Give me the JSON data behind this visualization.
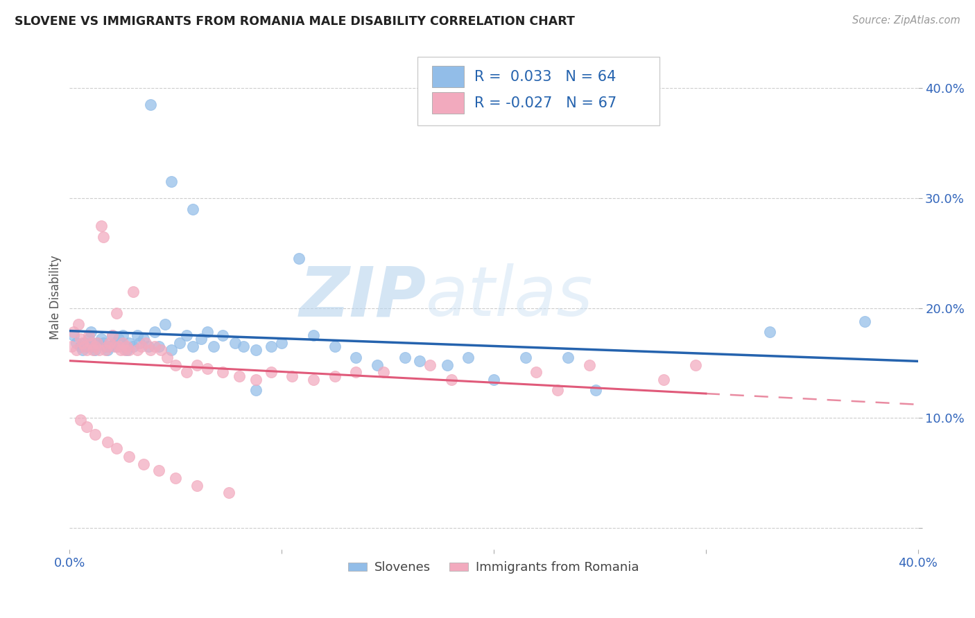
{
  "title": "SLOVENE VS IMMIGRANTS FROM ROMANIA MALE DISABILITY CORRELATION CHART",
  "source": "Source: ZipAtlas.com",
  "ylabel": "Male Disability",
  "xlim": [
    0.0,
    0.4
  ],
  "ylim": [
    -0.02,
    0.44
  ],
  "ytick_vals": [
    0.0,
    0.1,
    0.2,
    0.3,
    0.4
  ],
  "xtick_vals": [
    0.0,
    0.1,
    0.2,
    0.3,
    0.4
  ],
  "blue_color": "#92BDE8",
  "pink_color": "#F2AABE",
  "blue_line_color": "#2563AE",
  "pink_line_color": "#E05A7A",
  "watermark_zip": "ZIP",
  "watermark_atlas": "atlas",
  "legend_R_blue": " 0.033",
  "legend_N_blue": "64",
  "legend_R_pink": "-0.027",
  "legend_N_pink": "67",
  "blue_scatter_x": [
    0.038,
    0.088,
    0.048,
    0.058,
    0.002,
    0.003,
    0.005,
    0.006,
    0.007,
    0.008,
    0.009,
    0.01,
    0.011,
    0.012,
    0.013,
    0.015,
    0.016,
    0.017,
    0.018,
    0.019,
    0.02,
    0.021,
    0.022,
    0.023,
    0.025,
    0.026,
    0.027,
    0.028,
    0.03,
    0.032,
    0.033,
    0.035,
    0.037,
    0.04,
    0.042,
    0.045,
    0.048,
    0.052,
    0.055,
    0.058,
    0.062,
    0.065,
    0.068,
    0.072,
    0.078,
    0.082,
    0.088,
    0.095,
    0.1,
    0.108,
    0.115,
    0.125,
    0.135,
    0.145,
    0.158,
    0.165,
    0.178,
    0.188,
    0.2,
    0.215,
    0.235,
    0.248,
    0.33,
    0.375
  ],
  "blue_scatter_y": [
    0.385,
    0.125,
    0.315,
    0.29,
    0.175,
    0.168,
    0.165,
    0.162,
    0.168,
    0.165,
    0.172,
    0.178,
    0.165,
    0.162,
    0.168,
    0.172,
    0.168,
    0.165,
    0.162,
    0.165,
    0.175,
    0.168,
    0.165,
    0.172,
    0.175,
    0.165,
    0.162,
    0.168,
    0.165,
    0.175,
    0.168,
    0.172,
    0.165,
    0.178,
    0.165,
    0.185,
    0.162,
    0.168,
    0.175,
    0.165,
    0.172,
    0.178,
    0.165,
    0.175,
    0.168,
    0.165,
    0.162,
    0.165,
    0.168,
    0.245,
    0.175,
    0.165,
    0.155,
    0.148,
    0.155,
    0.152,
    0.148,
    0.155,
    0.135,
    0.155,
    0.155,
    0.125,
    0.178,
    0.188
  ],
  "pink_scatter_x": [
    0.001,
    0.002,
    0.003,
    0.004,
    0.005,
    0.006,
    0.007,
    0.008,
    0.009,
    0.01,
    0.011,
    0.012,
    0.013,
    0.014,
    0.015,
    0.016,
    0.017,
    0.018,
    0.019,
    0.02,
    0.021,
    0.022,
    0.023,
    0.024,
    0.025,
    0.026,
    0.027,
    0.028,
    0.03,
    0.032,
    0.034,
    0.036,
    0.038,
    0.04,
    0.043,
    0.046,
    0.05,
    0.055,
    0.06,
    0.065,
    0.072,
    0.08,
    0.088,
    0.095,
    0.105,
    0.115,
    0.125,
    0.135,
    0.148,
    0.17,
    0.18,
    0.22,
    0.23,
    0.245,
    0.28,
    0.295,
    0.005,
    0.008,
    0.012,
    0.018,
    0.022,
    0.028,
    0.035,
    0.042,
    0.05,
    0.06,
    0.075
  ],
  "pink_scatter_y": [
    0.165,
    0.178,
    0.162,
    0.185,
    0.172,
    0.168,
    0.165,
    0.162,
    0.175,
    0.168,
    0.162,
    0.165,
    0.168,
    0.162,
    0.275,
    0.265,
    0.162,
    0.165,
    0.168,
    0.175,
    0.165,
    0.195,
    0.165,
    0.162,
    0.168,
    0.162,
    0.165,
    0.162,
    0.215,
    0.162,
    0.165,
    0.168,
    0.162,
    0.165,
    0.162,
    0.155,
    0.148,
    0.142,
    0.148,
    0.145,
    0.142,
    0.138,
    0.135,
    0.142,
    0.138,
    0.135,
    0.138,
    0.142,
    0.142,
    0.148,
    0.135,
    0.142,
    0.125,
    0.148,
    0.135,
    0.148,
    0.098,
    0.092,
    0.085,
    0.078,
    0.072,
    0.065,
    0.058,
    0.052,
    0.045,
    0.038,
    0.032
  ]
}
